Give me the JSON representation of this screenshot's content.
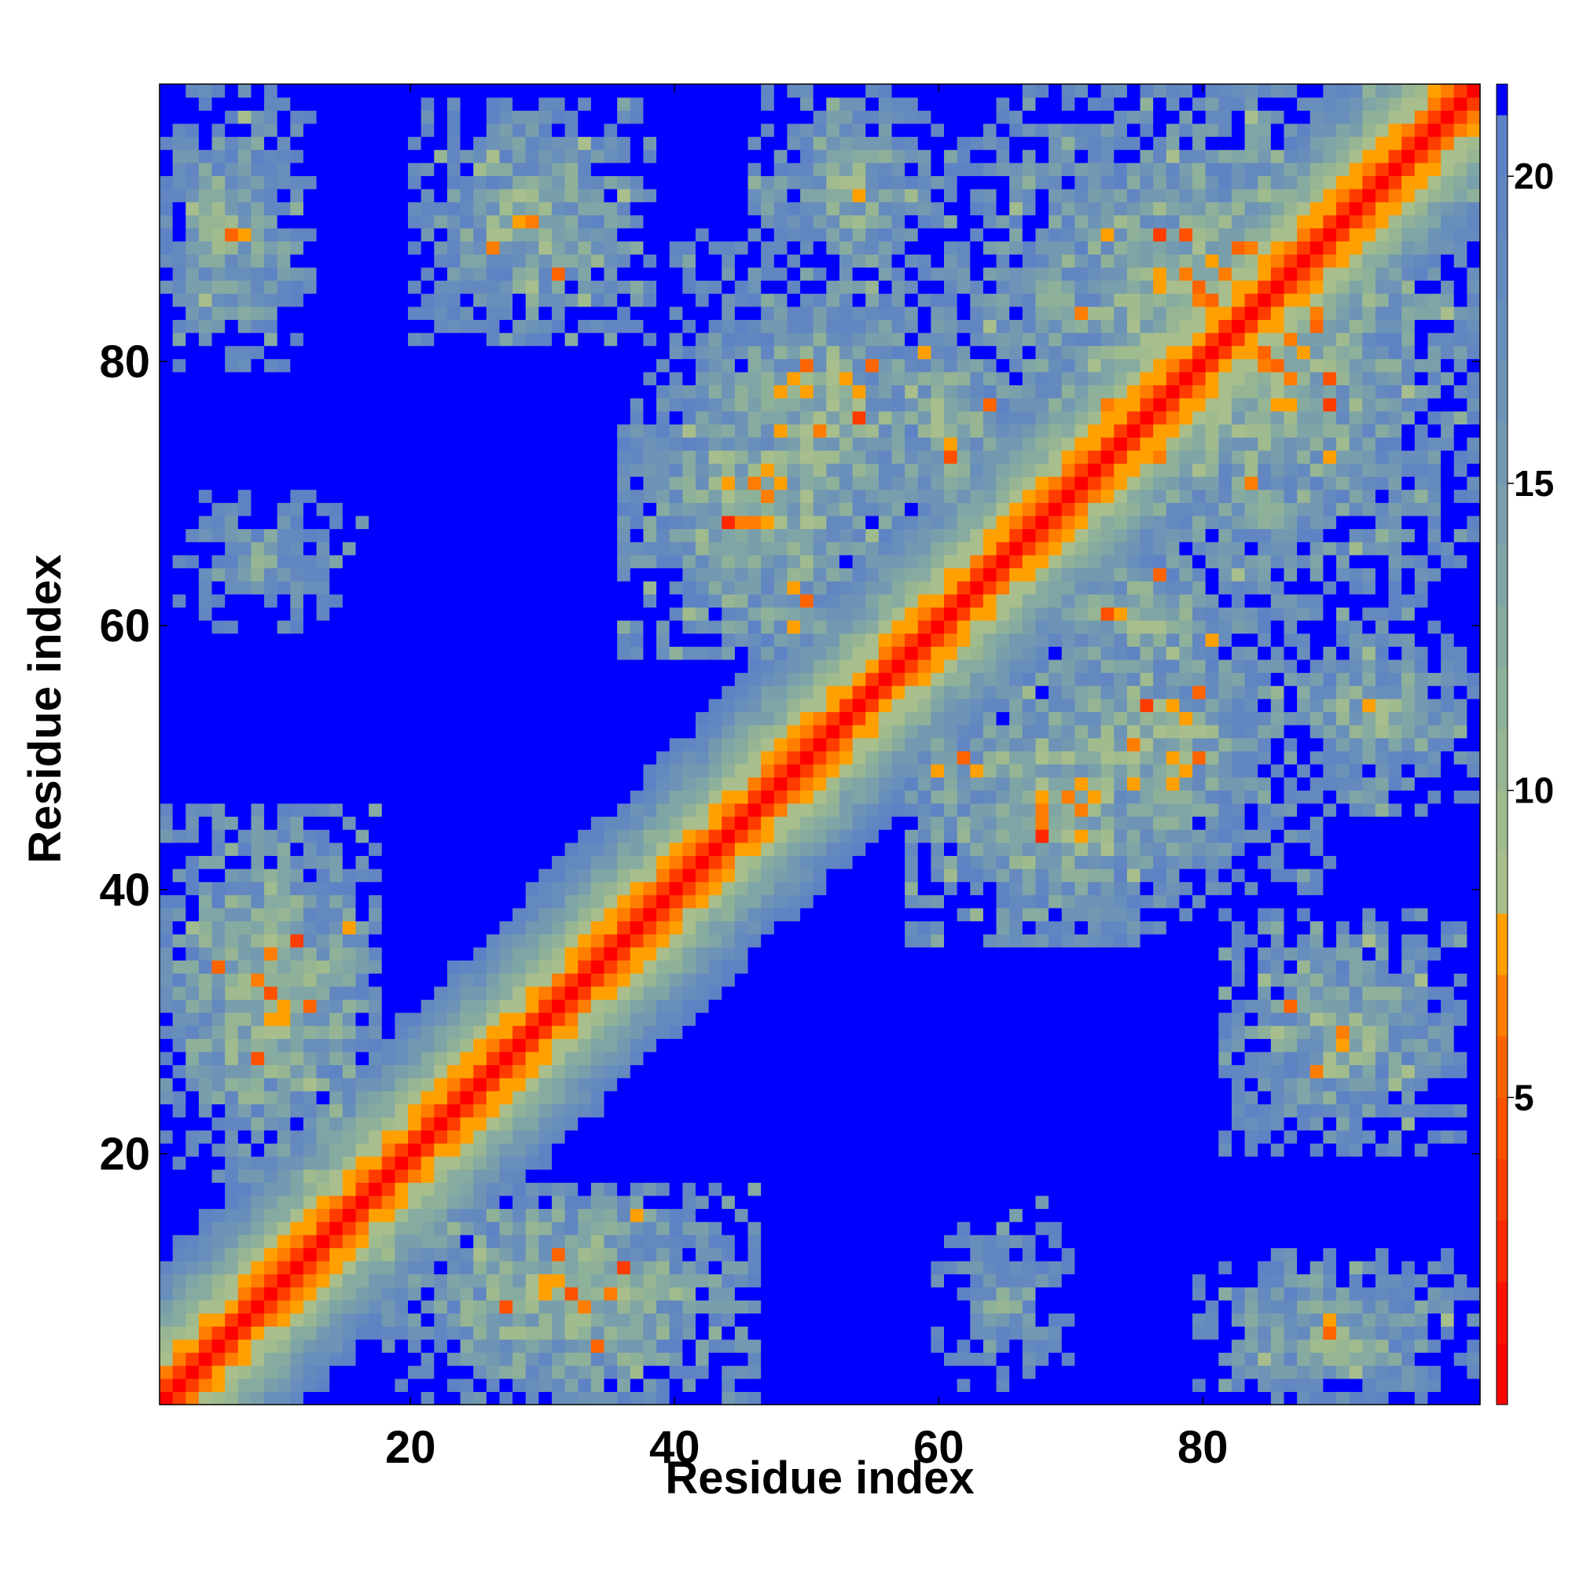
{
  "chart_data": {
    "type": "heatmap",
    "description_scale": "pairwise residue distance map",
    "xlabel": "Residue index",
    "ylabel": "Residue index",
    "xlim": [
      1,
      101
    ],
    "ylim": [
      1,
      101
    ],
    "x_ticks": [
      20,
      40,
      60,
      80
    ],
    "y_ticks": [
      20,
      40,
      60,
      80
    ],
    "colorbar": {
      "range": [
        0,
        21.5
      ],
      "ticks": [
        5,
        10,
        15,
        20
      ],
      "cutoff": 21,
      "levels": [
        {
          "max": 1,
          "color": "#ff0000"
        },
        {
          "max": 2,
          "color": "#ff1100"
        },
        {
          "max": 3,
          "color": "#ff2800"
        },
        {
          "max": 4,
          "color": "#ff3c00"
        },
        {
          "max": 5,
          "color": "#ff5000"
        },
        {
          "max": 6,
          "color": "#ff6400"
        },
        {
          "max": 7,
          "color": "#ff7d00"
        },
        {
          "max": 8,
          "color": "#ffa000"
        },
        {
          "max": 9,
          "color": "#a8be8c"
        },
        {
          "max": 10,
          "color": "#a0bb8e"
        },
        {
          "max": 11,
          "color": "#97b593"
        },
        {
          "max": 12,
          "color": "#8fb199"
        },
        {
          "max": 13,
          "color": "#87aba0"
        },
        {
          "max": 14,
          "color": "#7fa5a6"
        },
        {
          "max": 15,
          "color": "#799fac"
        },
        {
          "max": 16,
          "color": "#7399b1"
        },
        {
          "max": 17,
          "color": "#6d93b6"
        },
        {
          "max": 18,
          "color": "#688ebb"
        },
        {
          "max": 19,
          "color": "#6489bf"
        },
        {
          "max": 20,
          "color": "#6186c2"
        },
        {
          "max": 21,
          "color": "#5e83c5"
        },
        {
          "max": 999,
          "color": "#0000ff"
        }
      ]
    },
    "matrix_size": 101,
    "matrix_model": {
      "note": "Symmetric distance matrix d(i,j) for residues 1..101; values above 21 shown saturated blue.",
      "diagonal_band": "d grows with |i-j|: ~0-4 within |i-j|<=1, ~5-8 for |i-j|<=4, ~9-21 up to |i-j|~12",
      "contact_regions": [
        {
          "i": [
            1,
            17
          ],
          "j": [
            18,
            48
          ],
          "min_distance": 5
        },
        {
          "i": [
            1,
            17
          ],
          "j": [
            78,
            101
          ],
          "min_distance": 8
        },
        {
          "i": [
            1,
            17
          ],
          "j": [
            85,
            101
          ],
          "min_distance": 7
        },
        {
          "i": [
            18,
            36
          ],
          "j": [
            1,
            20
          ],
          "min_distance": 6
        },
        {
          "i": [
            40,
            56
          ],
          "j": [
            58,
            78
          ],
          "min_distance": 4
        },
        {
          "i": [
            58,
            70
          ],
          "j": [
            70,
            86
          ],
          "min_distance": 6
        },
        {
          "i": [
            70,
            101
          ],
          "j": [
            35,
            60
          ],
          "min_distance": 6
        },
        {
          "i": [
            80,
            101
          ],
          "j": [
            80,
            101
          ],
          "min_distance": 6
        },
        {
          "i": [
            68,
            78
          ],
          "j": [
            58,
            68
          ],
          "min_distance": 5
        }
      ]
    }
  }
}
